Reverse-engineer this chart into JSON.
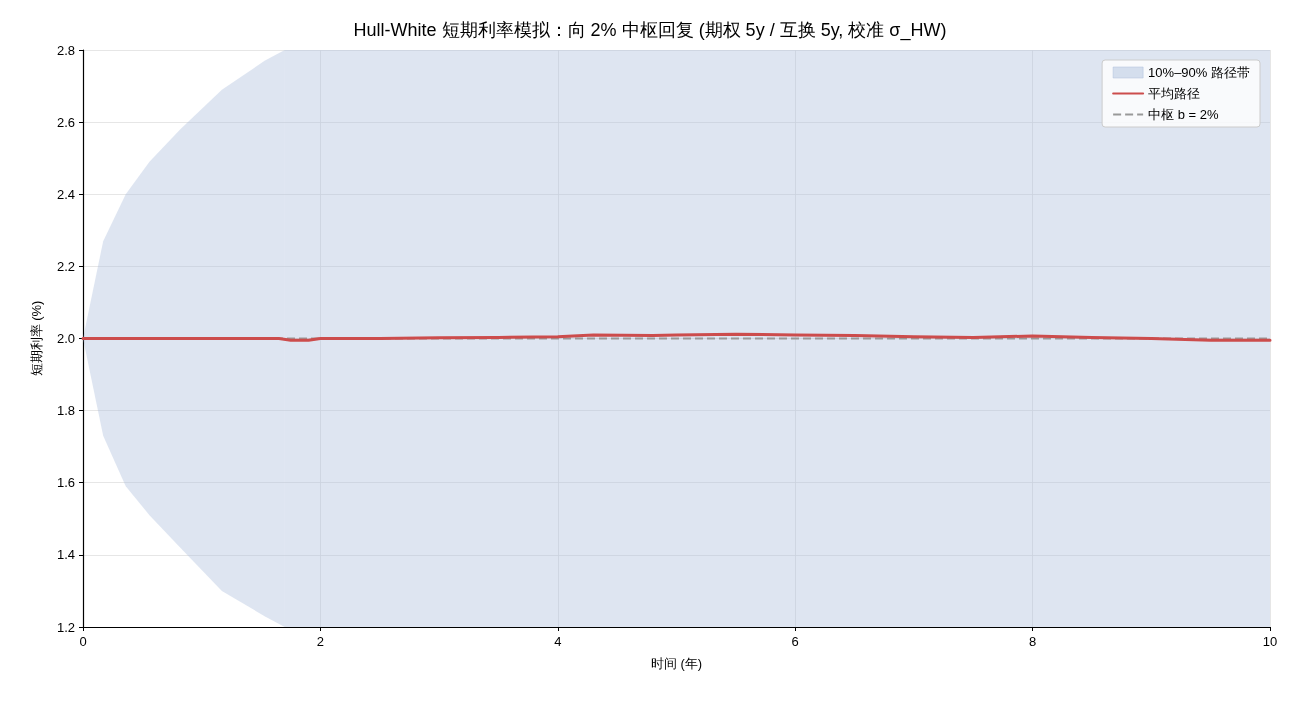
{
  "chart_data": {
    "type": "line",
    "title": "Hull-White 短期利率模拟：向 2% 中枢回复 (期权 5y / 互换 5y, 校准 σ_HW)",
    "xlabel": "时间 (年)",
    "ylabel": "短期利率 (%)",
    "xlim": [
      0,
      10
    ],
    "xticks": [
      0,
      2,
      4,
      6,
      8,
      10
    ],
    "ylim": [
      1.2,
      2.8
    ],
    "yticks": [
      1.2,
      1.4,
      1.6,
      1.8,
      {
        "value": 2,
        "label": "2.0"
      },
      2.2,
      2.4,
      2.6,
      2.8
    ],
    "grid": true,
    "legend": "top right",
    "marker": "none",
    "line_style": "solid",
    "series": [
      {
        "name": "10%–90% 路径带",
        "type": "area",
        "color": "#b0c2de",
        "x": [
          0,
          0.17,
          0.36,
          0.56,
          0.82,
          1.17,
          1.53,
          1.7
        ],
        "values": [
          null,
          null,
          null,
          null,
          null,
          null,
          null,
          null
        ],
        "lower": [
          2.0,
          1.73,
          1.59,
          1.51,
          1.42,
          1.3,
          1.23,
          1.2
        ],
        "upper": [
          2.0,
          2.27,
          2.4,
          2.49,
          2.58,
          2.69,
          2.77,
          2.8
        ]
      },
      {
        "name": "平均路径",
        "color": "#cc4c4c",
        "x": [
          0,
          0.5,
          1,
          1.5,
          1.65,
          1.75,
          1.9,
          2,
          2.5,
          3,
          3.5,
          4,
          4.3,
          4.8,
          5,
          5.5,
          6,
          6.5,
          7,
          7.5,
          8,
          8.5,
          9,
          9.5,
          10
        ],
        "values": [
          2.0,
          2.0,
          2.0,
          2.0,
          2.0,
          1.995,
          1.995,
          2.0,
          2.0,
          2.002,
          2.003,
          2.005,
          2.01,
          2.008,
          2.01,
          2.012,
          2.01,
          2.008,
          2.005,
          2.003,
          2.007,
          2.003,
          2.0,
          1.995,
          1.995
        ]
      }
    ],
    "bands": [
      {
        "axis": "x",
        "from": 1.7,
        "to": 10,
        "color": "#b0c2de"
      }
    ],
    "ref_lines": [
      {
        "axis": "y",
        "value": 2,
        "label": "中枢 b = 2%",
        "color": "#999999",
        "line_style": "dashed"
      }
    ]
  }
}
